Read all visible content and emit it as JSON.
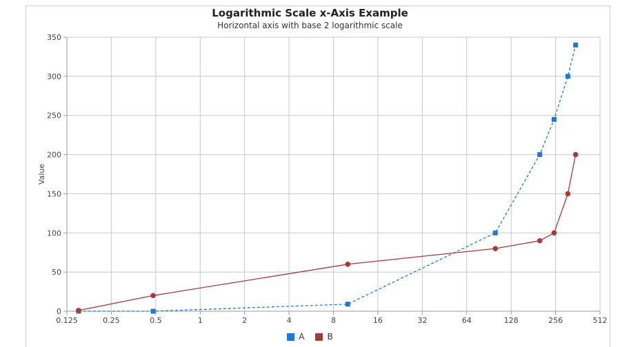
{
  "chart_data": {
    "type": "line",
    "title": "Logarithmic Scale x-Axis Example",
    "subtitle": "Horizontal axis with base 2 logarithmic scale",
    "ylabel": "Value",
    "xlabel": "",
    "x_scale": "log2",
    "xlim": [
      0.125,
      512
    ],
    "ylim": [
      0,
      350
    ],
    "x_ticks": [
      "0.125",
      "0.25",
      "0.5",
      "1",
      "2",
      "4",
      "8",
      "16",
      "32",
      "64",
      "128",
      "256",
      "512"
    ],
    "y_ticks": [
      "0",
      "50",
      "100",
      "150",
      "200",
      "250",
      "300",
      "350"
    ],
    "grid": true,
    "legend_position": "bottom",
    "series": [
      {
        "name": "A",
        "color": "#1f77d6",
        "style": "dashed",
        "marker": "square",
        "points": [
          {
            "x": 0.15,
            "y": 0
          },
          {
            "x": 0.48,
            "y": 0
          },
          {
            "x": 10,
            "y": 9
          },
          {
            "x": 100,
            "y": 100
          },
          {
            "x": 200,
            "y": 200
          },
          {
            "x": 250,
            "y": 245
          },
          {
            "x": 310,
            "y": 300
          },
          {
            "x": 350,
            "y": 340
          }
        ]
      },
      {
        "name": "B",
        "color": "#a83a3a",
        "style": "solid",
        "marker": "circle",
        "points": [
          {
            "x": 0.15,
            "y": 1
          },
          {
            "x": 0.48,
            "y": 20
          },
          {
            "x": 10,
            "y": 60
          },
          {
            "x": 100,
            "y": 80
          },
          {
            "x": 200,
            "y": 90
          },
          {
            "x": 250,
            "y": 100
          },
          {
            "x": 310,
            "y": 150
          },
          {
            "x": 350,
            "y": 200
          }
        ]
      }
    ]
  }
}
